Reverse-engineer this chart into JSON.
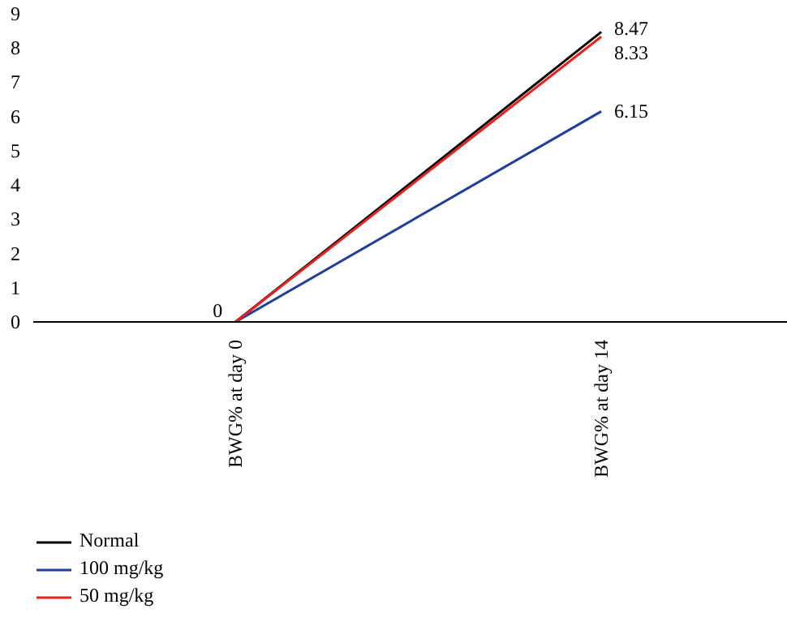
{
  "chart_data": {
    "type": "line",
    "categories": [
      "BWG% at day 0",
      "BWG% at day 14"
    ],
    "series": [
      {
        "name": "Normal",
        "color": "#000000",
        "values": [
          0,
          8.47
        ],
        "value_labels": [
          null,
          "8.47"
        ]
      },
      {
        "name": "100 mg/kg",
        "color": "#1f3f9a",
        "values": [
          0,
          6.15
        ],
        "value_labels": [
          "0",
          "6.15"
        ]
      },
      {
        "name": "50 mg/kg",
        "color": "#e8211d",
        "values": [
          0,
          8.33
        ],
        "value_labels": [
          null,
          "8.33"
        ]
      }
    ],
    "ylim": [
      0,
      9
    ],
    "yticks": [
      0,
      1,
      2,
      3,
      4,
      5,
      6,
      7,
      8,
      9
    ],
    "grid": false,
    "legend": "bottom left",
    "marker": "none",
    "line_style": "solid"
  }
}
